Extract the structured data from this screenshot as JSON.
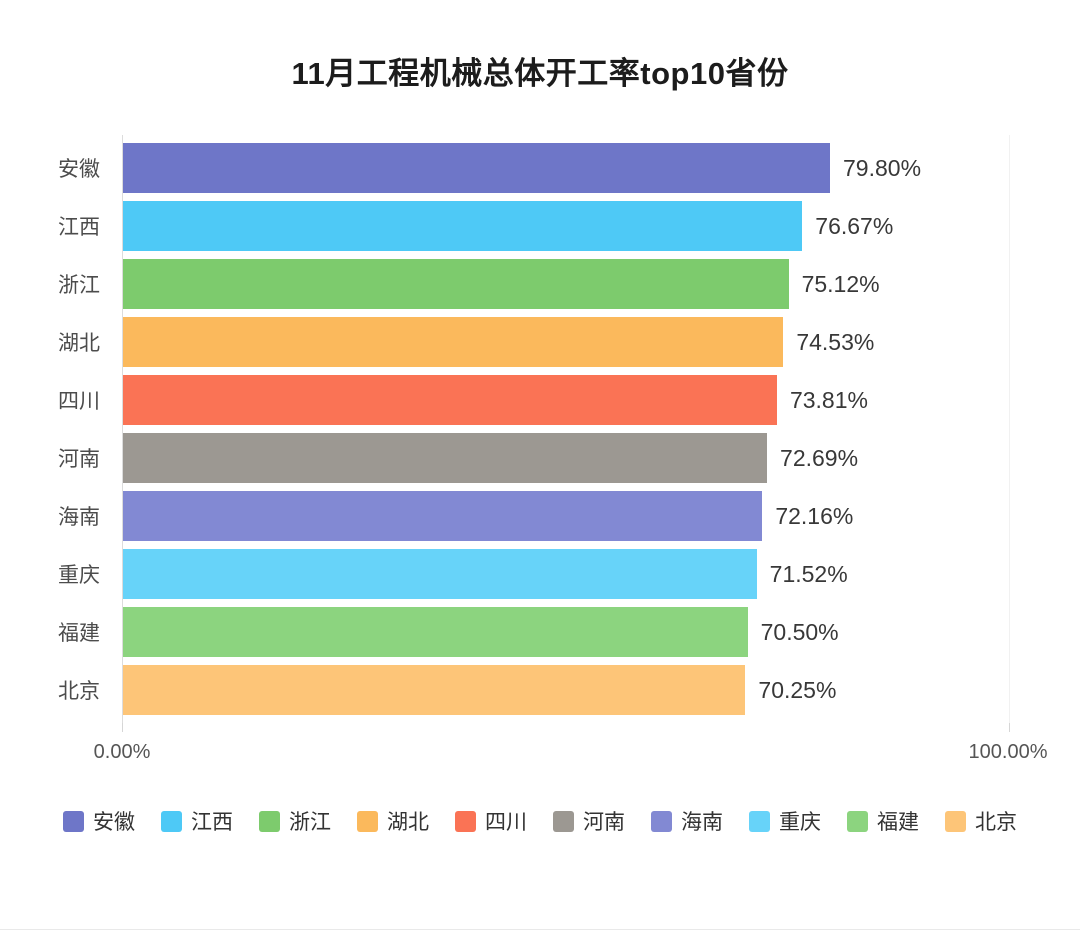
{
  "title": "11月工程机械总体开工率top10省份",
  "chart_data": {
    "type": "bar",
    "orientation": "horizontal",
    "title": "11月工程机械总体开工率top10省份",
    "categories": [
      "安徽",
      "江西",
      "浙江",
      "湖北",
      "四川",
      "河南",
      "海南",
      "重庆",
      "福建",
      "北京"
    ],
    "values": [
      79.8,
      76.67,
      75.12,
      74.53,
      73.81,
      72.69,
      72.16,
      71.52,
      70.5,
      70.25
    ],
    "value_labels": [
      "79.80%",
      "76.67%",
      "75.12%",
      "74.53%",
      "73.81%",
      "72.69%",
      "72.16%",
      "71.52%",
      "70.50%",
      "70.25%"
    ],
    "bar_colors": [
      "#6E76C8",
      "#4EC9F6",
      "#7DCB6D",
      "#FBB95C",
      "#FA7355",
      "#9C9892",
      "#8289D3",
      "#67D3F9",
      "#8CD47F",
      "#FDC578"
    ],
    "xlim": [
      0,
      100
    ],
    "x_tick_labels": [
      "0.00%",
      "100.00%"
    ],
    "grid": "minimal",
    "legend_position": "bottom",
    "legend_labels": [
      "安徽",
      "江西",
      "浙江",
      "湖北",
      "四川",
      "河南",
      "海南",
      "重庆",
      "福建",
      "北京"
    ]
  }
}
